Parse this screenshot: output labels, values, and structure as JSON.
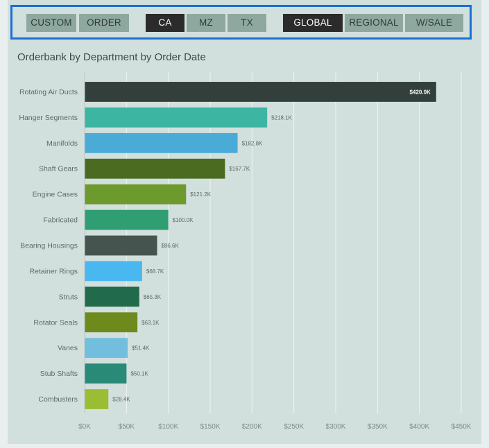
{
  "filters": {
    "buttons": [
      {
        "label": "CUSTOM",
        "active": false
      },
      {
        "label": "ORDER",
        "active": false
      },
      {
        "label": "CA",
        "active": true
      },
      {
        "label": "MZ",
        "active": false
      },
      {
        "label": "TX",
        "active": false
      },
      {
        "label": "GLOBAL",
        "active": true
      },
      {
        "label": "REGIONAL",
        "active": false
      },
      {
        "label": "W/SALE",
        "active": false
      }
    ]
  },
  "chart_data": {
    "type": "bar",
    "orientation": "horizontal",
    "title": "Orderbank by Department by Order Date",
    "xlabel": "",
    "ylabel": "",
    "xlim": [
      0,
      450
    ],
    "grid": true,
    "x_ticks": [
      "$0K",
      "$50K",
      "$100K",
      "$150K",
      "$200K",
      "$250K",
      "$300K",
      "$350K",
      "$400K",
      "$450K"
    ],
    "categories": [
      "Rotating Air Ducts",
      "Hanger Segments",
      "Manifolds",
      "Shaft Gears",
      "Engine Cases",
      "Fabricated",
      "Bearing Housings",
      "Retainer Rings",
      "Struts",
      "Rotator Seals",
      "Vanes",
      "Stub Shafts",
      "Combusters"
    ],
    "values": [
      420.0,
      218.1,
      182.8,
      167.7,
      121.2,
      100.0,
      86.6,
      68.7,
      65.3,
      63.1,
      51.4,
      50.1,
      28.4
    ],
    "value_labels": [
      "$420.0K",
      "$218.1K",
      "$182.8K",
      "$167.7K",
      "$121.2K",
      "$100.0K",
      "$86.6K",
      "$68.7K",
      "$65.3K",
      "$63.1K",
      "$51.4K",
      "$50.1K",
      "$28.4K"
    ],
    "colors": [
      "#323f3a",
      "#3cb5a3",
      "#4aabd6",
      "#4a6b20",
      "#6c9a2c",
      "#2f9e72",
      "#45544e",
      "#4ab8f0",
      "#216a4c",
      "#6e8a1c",
      "#72bedf",
      "#298a78",
      "#9bbd33"
    ]
  }
}
